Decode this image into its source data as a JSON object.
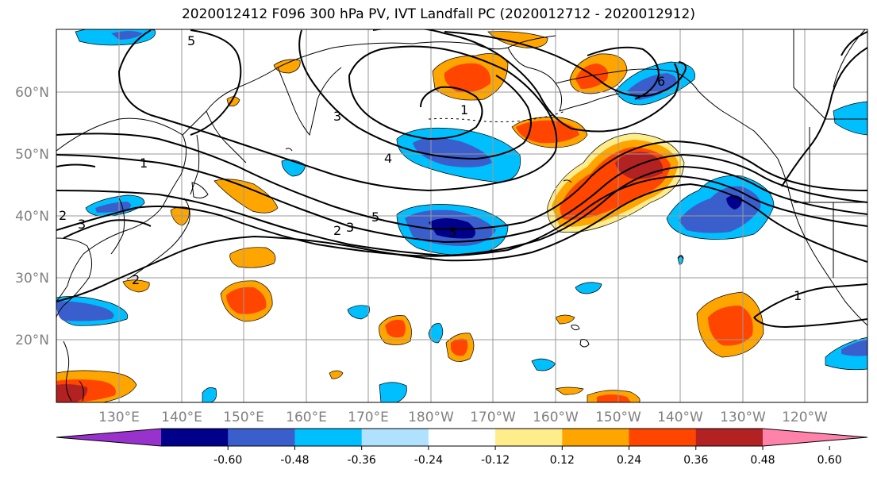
{
  "title": "2020012412 F096 300 hPa PV, IVT Landfall PC (2020012712 - 2020012912)",
  "lat_labels": [
    "60°N",
    "50°N",
    "40°N",
    "30°N",
    "20°N"
  ],
  "lon_labels": [
    "130°E",
    "140°E",
    "150°E",
    "160°E",
    "170°E",
    "180°W",
    "170°W",
    "160°W",
    "150°W",
    "140°W",
    "130°W",
    "120°W"
  ],
  "colorbar": {
    "colors": [
      "#9932cc",
      "#00008b",
      "#3a5fcd",
      "#00bfff",
      "#b0e2ff",
      "#ffffff",
      "#ffec8b",
      "#ffa500",
      "#ff4500",
      "#b22222",
      "#ff82ab"
    ],
    "tick_labels": [
      "-0.60",
      "-0.48",
      "-0.36",
      "-0.24",
      "-0.12",
      "0.12",
      "0.24",
      "0.36",
      "0.48",
      "0.60"
    ]
  },
  "contour_labels": [
    "5",
    "3",
    "1",
    "4",
    "5",
    "6",
    "1",
    "2",
    "3",
    "2",
    "3",
    "5",
    "2",
    "1"
  ]
}
